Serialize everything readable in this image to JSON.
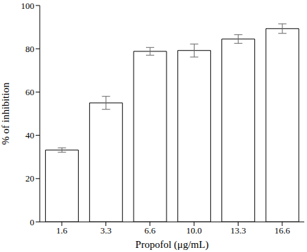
{
  "chart_data": {
    "type": "bar",
    "x_label": "Propofol (μg/mL)",
    "y_label": "% of inhibition",
    "categories": [
      "1.6",
      "3.3",
      "6.6",
      "10.0",
      "13.3",
      "16.6"
    ],
    "values": [
      33.2,
      55,
      78.8,
      79.2,
      84.5,
      89.3
    ],
    "errors": [
      1,
      3,
      1.8,
      3,
      2,
      2.2
    ],
    "color": "#ffffff",
    "ylim": [
      0,
      100
    ],
    "yticks": [
      0,
      20,
      40,
      60,
      80,
      100
    ],
    "grid": false
  }
}
